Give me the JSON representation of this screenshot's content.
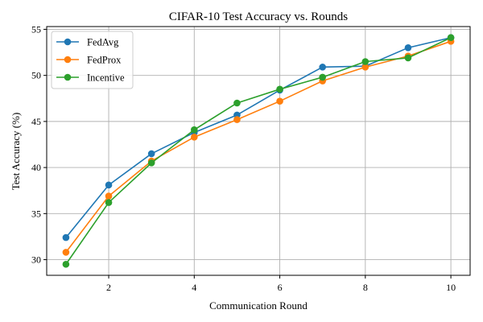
{
  "chart_data": {
    "type": "line",
    "title": "CIFAR-10 Test Accuracy vs. Rounds",
    "xlabel": "Communication Round",
    "ylabel": "Test Accuracy (%)",
    "x": [
      1,
      2,
      3,
      4,
      5,
      6,
      7,
      8,
      9,
      10
    ],
    "xlim": [
      0.55,
      10.45
    ],
    "ylim": [
      28.3,
      55.3
    ],
    "xticks": [
      2,
      4,
      6,
      8,
      10
    ],
    "yticks": [
      30,
      35,
      40,
      45,
      50,
      55
    ],
    "grid": true,
    "legend_position": "top-left",
    "series": [
      {
        "name": "FedAvg",
        "color": "#1f77b4",
        "marker": "circle",
        "values": [
          32.4,
          38.1,
          41.5,
          43.8,
          45.7,
          48.4,
          50.9,
          51.0,
          53.0,
          54.1
        ]
      },
      {
        "name": "FedProx",
        "color": "#ff7f0e",
        "marker": "circle",
        "values": [
          30.8,
          36.9,
          40.7,
          43.3,
          45.2,
          47.2,
          49.4,
          50.9,
          52.1,
          53.7
        ]
      },
      {
        "name": "Incentive",
        "color": "#2ca02c",
        "marker": "circle",
        "values": [
          29.5,
          36.2,
          40.5,
          44.1,
          47.0,
          48.5,
          49.8,
          51.5,
          51.9,
          54.1
        ]
      }
    ]
  }
}
